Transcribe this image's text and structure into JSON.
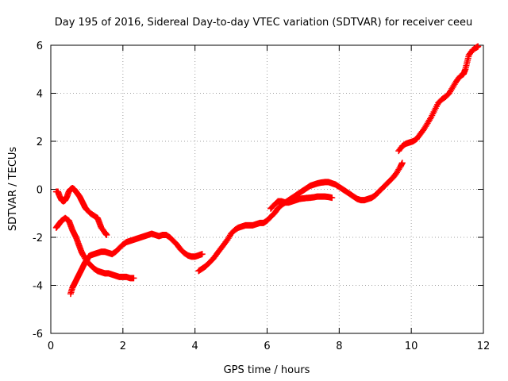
{
  "chart_data": {
    "type": "scatter",
    "title": "Day 195 of 2016, Sidereal Day-to-day VTEC variation (SDTVAR) for receiver ceeu",
    "xlabel": "GPS time / hours",
    "ylabel": "SDTVAR / TECUs",
    "xlim": [
      0,
      12
    ],
    "ylim": [
      -6,
      6
    ],
    "xticks": [
      "0",
      "2",
      "4",
      "6",
      "8",
      "10",
      "12"
    ],
    "yticks": [
      "-6",
      "-4",
      "-2",
      "0",
      "2",
      "4",
      "6"
    ],
    "grid": true,
    "marker": "plus",
    "color": "#ff0000",
    "series": [
      {
        "points": [
          [
            0.15,
            -0.1
          ],
          [
            0.2,
            -0.1
          ],
          [
            0.25,
            -0.3
          ],
          [
            0.3,
            -0.45
          ],
          [
            0.35,
            -0.5
          ],
          [
            0.4,
            -0.45
          ],
          [
            0.45,
            -0.3
          ],
          [
            0.5,
            -0.1
          ],
          [
            0.55,
            0.0
          ],
          [
            0.6,
            0.05
          ],
          [
            0.65,
            0.0
          ],
          [
            0.7,
            -0.1
          ],
          [
            0.75,
            -0.2
          ],
          [
            0.8,
            -0.3
          ],
          [
            0.85,
            -0.45
          ],
          [
            0.9,
            -0.6
          ],
          [
            0.95,
            -0.75
          ],
          [
            1.0,
            -0.85
          ],
          [
            1.1,
            -1.0
          ],
          [
            1.2,
            -1.1
          ],
          [
            1.3,
            -1.2
          ],
          [
            1.35,
            -1.4
          ],
          [
            1.4,
            -1.6
          ],
          [
            1.5,
            -1.8
          ],
          [
            1.55,
            -1.9
          ]
        ]
      },
      {
        "points": [
          [
            0.15,
            -1.6
          ],
          [
            0.2,
            -1.5
          ],
          [
            0.25,
            -1.4
          ],
          [
            0.3,
            -1.3
          ],
          [
            0.4,
            -1.2
          ],
          [
            0.5,
            -1.3
          ],
          [
            0.55,
            -1.5
          ],
          [
            0.6,
            -1.7
          ],
          [
            0.65,
            -1.85
          ],
          [
            0.7,
            -2.0
          ],
          [
            0.75,
            -2.2
          ],
          [
            0.8,
            -2.4
          ],
          [
            0.85,
            -2.6
          ],
          [
            0.9,
            -2.75
          ],
          [
            1.0,
            -3.0
          ],
          [
            1.1,
            -3.15
          ],
          [
            1.2,
            -3.3
          ],
          [
            1.3,
            -3.4
          ],
          [
            1.4,
            -3.45
          ],
          [
            1.5,
            -3.5
          ],
          [
            1.6,
            -3.5
          ],
          [
            1.7,
            -3.55
          ],
          [
            1.8,
            -3.6
          ],
          [
            1.9,
            -3.65
          ],
          [
            2.0,
            -3.65
          ],
          [
            2.1,
            -3.65
          ],
          [
            2.2,
            -3.7
          ],
          [
            2.3,
            -3.7
          ]
        ]
      },
      {
        "points": [
          [
            0.55,
            -4.35
          ],
          [
            0.6,
            -4.1
          ],
          [
            0.65,
            -3.95
          ],
          [
            0.7,
            -3.8
          ],
          [
            0.75,
            -3.65
          ],
          [
            0.8,
            -3.5
          ],
          [
            0.85,
            -3.35
          ],
          [
            0.9,
            -3.2
          ],
          [
            0.95,
            -3.05
          ],
          [
            1.0,
            -2.95
          ],
          [
            1.05,
            -2.8
          ],
          [
            1.1,
            -2.75
          ],
          [
            1.2,
            -2.7
          ],
          [
            1.3,
            -2.65
          ],
          [
            1.4,
            -2.6
          ],
          [
            1.5,
            -2.6
          ],
          [
            1.6,
            -2.65
          ],
          [
            1.7,
            -2.7
          ],
          [
            1.8,
            -2.6
          ],
          [
            1.9,
            -2.45
          ],
          [
            2.0,
            -2.3
          ],
          [
            2.1,
            -2.2
          ],
          [
            2.2,
            -2.15
          ],
          [
            2.3,
            -2.1
          ],
          [
            2.4,
            -2.05
          ],
          [
            2.5,
            -2.0
          ],
          [
            2.6,
            -1.95
          ],
          [
            2.7,
            -1.9
          ],
          [
            2.8,
            -1.85
          ],
          [
            2.9,
            -1.9
          ],
          [
            3.0,
            -1.95
          ],
          [
            3.1,
            -1.9
          ],
          [
            3.2,
            -1.9
          ],
          [
            3.3,
            -2.0
          ],
          [
            3.4,
            -2.15
          ],
          [
            3.5,
            -2.3
          ],
          [
            3.6,
            -2.5
          ],
          [
            3.7,
            -2.65
          ],
          [
            3.8,
            -2.75
          ],
          [
            3.9,
            -2.8
          ],
          [
            4.0,
            -2.8
          ],
          [
            4.1,
            -2.75
          ],
          [
            4.2,
            -2.7
          ]
        ]
      },
      {
        "points": [
          [
            4.1,
            -3.4
          ],
          [
            4.2,
            -3.3
          ],
          [
            4.3,
            -3.2
          ],
          [
            4.4,
            -3.05
          ],
          [
            4.5,
            -2.9
          ],
          [
            4.6,
            -2.7
          ],
          [
            4.7,
            -2.5
          ],
          [
            4.8,
            -2.3
          ],
          [
            4.9,
            -2.1
          ],
          [
            5.0,
            -1.85
          ],
          [
            5.1,
            -1.7
          ],
          [
            5.2,
            -1.6
          ],
          [
            5.3,
            -1.55
          ],
          [
            5.4,
            -1.5
          ],
          [
            5.5,
            -1.5
          ],
          [
            5.6,
            -1.5
          ],
          [
            5.7,
            -1.45
          ],
          [
            5.8,
            -1.4
          ],
          [
            5.9,
            -1.4
          ],
          [
            6.0,
            -1.3
          ],
          [
            6.1,
            -1.15
          ],
          [
            6.2,
            -1.0
          ],
          [
            6.3,
            -0.8
          ],
          [
            6.4,
            -0.65
          ],
          [
            6.5,
            -0.55
          ],
          [
            6.6,
            -0.45
          ],
          [
            6.7,
            -0.35
          ],
          [
            6.8,
            -0.25
          ],
          [
            6.9,
            -0.15
          ],
          [
            7.0,
            -0.05
          ],
          [
            7.1,
            0.05
          ],
          [
            7.2,
            0.15
          ],
          [
            7.3,
            0.2
          ],
          [
            7.4,
            0.25
          ],
          [
            7.5,
            0.28
          ],
          [
            7.6,
            0.3
          ],
          [
            7.7,
            0.3
          ],
          [
            7.8,
            0.25
          ],
          [
            7.9,
            0.2
          ],
          [
            8.0,
            0.1
          ],
          [
            8.1,
            0.0
          ],
          [
            8.2,
            -0.1
          ],
          [
            8.3,
            -0.2
          ],
          [
            8.4,
            -0.3
          ],
          [
            8.5,
            -0.4
          ],
          [
            8.6,
            -0.45
          ],
          [
            8.7,
            -0.45
          ],
          [
            8.8,
            -0.4
          ],
          [
            8.9,
            -0.35
          ],
          [
            9.0,
            -0.25
          ],
          [
            9.1,
            -0.1
          ],
          [
            9.2,
            0.05
          ],
          [
            9.3,
            0.2
          ],
          [
            9.4,
            0.35
          ],
          [
            9.5,
            0.5
          ],
          [
            9.6,
            0.7
          ],
          [
            9.7,
            0.95
          ],
          [
            9.75,
            1.1
          ]
        ]
      },
      {
        "points": [
          [
            6.1,
            -0.8
          ],
          [
            6.2,
            -0.65
          ],
          [
            6.3,
            -0.5
          ],
          [
            6.4,
            -0.5
          ],
          [
            6.5,
            -0.55
          ],
          [
            6.6,
            -0.55
          ],
          [
            6.7,
            -0.5
          ],
          [
            6.8,
            -0.45
          ],
          [
            6.9,
            -0.4
          ],
          [
            7.0,
            -0.38
          ],
          [
            7.1,
            -0.36
          ],
          [
            7.2,
            -0.35
          ],
          [
            7.3,
            -0.33
          ],
          [
            7.4,
            -0.3
          ],
          [
            7.5,
            -0.3
          ],
          [
            7.6,
            -0.3
          ],
          [
            7.7,
            -0.32
          ],
          [
            7.8,
            -0.35
          ]
        ]
      },
      {
        "points": [
          [
            9.65,
            1.6
          ],
          [
            9.75,
            1.8
          ],
          [
            9.85,
            1.9
          ],
          [
            9.95,
            1.95
          ],
          [
            10.05,
            2.0
          ],
          [
            10.15,
            2.1
          ],
          [
            10.25,
            2.3
          ],
          [
            10.35,
            2.5
          ],
          [
            10.45,
            2.75
          ],
          [
            10.55,
            3.0
          ],
          [
            10.65,
            3.3
          ],
          [
            10.75,
            3.6
          ],
          [
            10.85,
            3.75
          ],
          [
            10.95,
            3.85
          ],
          [
            11.05,
            4.0
          ],
          [
            11.15,
            4.25
          ],
          [
            11.25,
            4.5
          ],
          [
            11.35,
            4.7
          ],
          [
            11.45,
            4.8
          ],
          [
            11.5,
            5.0
          ],
          [
            11.55,
            5.3
          ],
          [
            11.6,
            5.6
          ],
          [
            11.7,
            5.8
          ],
          [
            11.8,
            5.9
          ],
          [
            11.85,
            5.95
          ]
        ]
      }
    ]
  }
}
